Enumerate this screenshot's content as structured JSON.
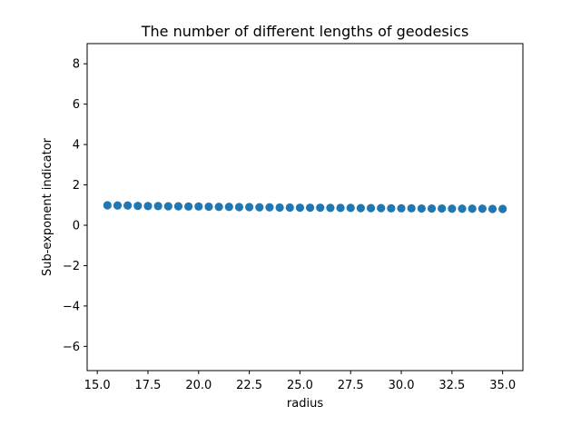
{
  "chart_data": {
    "type": "scatter",
    "title": "The number of different lengths of geodesics",
    "xlabel": "radius",
    "ylabel": "Sub-exponent indicator",
    "xlim": [
      14.5,
      36.0
    ],
    "ylim": [
      -7.2,
      9.0
    ],
    "xticks": [
      15.0,
      17.5,
      20.0,
      22.5,
      25.0,
      27.5,
      30.0,
      32.5,
      35.0
    ],
    "xtick_labels": [
      "15.0",
      "17.5",
      "20.0",
      "22.5",
      "25.0",
      "27.5",
      "30.0",
      "32.5",
      "35.0"
    ],
    "yticks": [
      -6,
      -4,
      -2,
      0,
      2,
      4,
      6,
      8
    ],
    "ytick_labels": [
      "−6",
      "−4",
      "−2",
      "0",
      "2",
      "4",
      "6",
      "8"
    ],
    "grid": false,
    "marker_color": "#1f77b4",
    "series": [
      {
        "x": [
          15.5,
          16.0,
          16.5,
          17.0,
          17.5,
          18.0,
          18.5,
          19.0,
          19.5,
          20.0,
          20.5,
          21.0,
          21.5,
          22.0,
          22.5,
          23.0,
          23.5,
          24.0,
          24.5,
          25.0,
          25.5,
          26.0,
          26.5,
          27.0,
          27.5,
          28.0,
          28.5,
          29.0,
          29.5,
          30.0,
          30.5,
          31.0,
          31.5,
          32.0,
          32.5,
          33.0,
          33.5,
          34.0,
          34.5,
          35.0
        ],
        "y": [
          0.99,
          0.98,
          0.98,
          0.96,
          0.95,
          0.95,
          0.94,
          0.94,
          0.93,
          0.93,
          0.92,
          0.91,
          0.91,
          0.9,
          0.9,
          0.89,
          0.89,
          0.88,
          0.88,
          0.87,
          0.87,
          0.87,
          0.86,
          0.86,
          0.86,
          0.85,
          0.85,
          0.85,
          0.84,
          0.84,
          0.84,
          0.83,
          0.83,
          0.83,
          0.82,
          0.82,
          0.82,
          0.82,
          0.81,
          0.81
        ]
      }
    ]
  }
}
